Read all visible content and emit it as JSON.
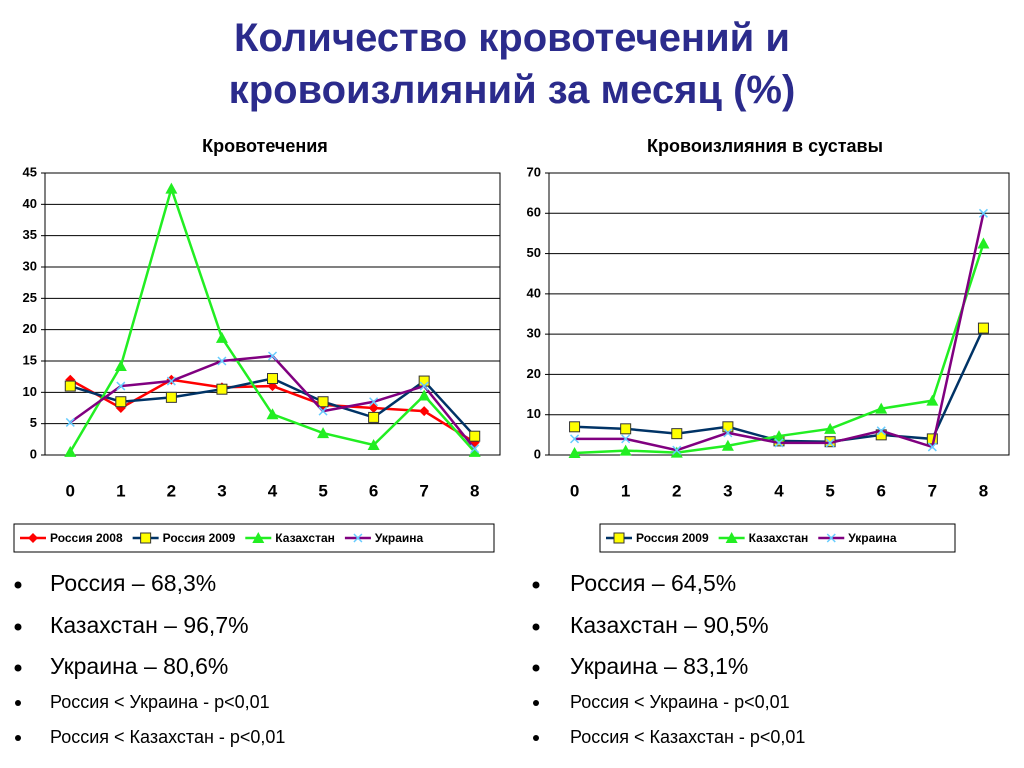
{
  "title": "Количество кровотечений и кровоизлияний за месяц (%)",
  "chart_data": [
    {
      "type": "line",
      "title": "Кровотечения",
      "categories": [
        "0",
        "1",
        "2",
        "3",
        "4",
        "5",
        "6",
        "7",
        "8"
      ],
      "ylim": [
        0,
        45
      ],
      "yticks": [
        0,
        5,
        10,
        15,
        20,
        25,
        30,
        35,
        40,
        45
      ],
      "grid": true,
      "series": [
        {
          "name": "Россия 2008",
          "color": "#ff0000",
          "marker": "diamond",
          "marker_color": "#ff0000",
          "values": [
            12,
            7.5,
            12,
            10.8,
            11,
            8,
            7.5,
            7,
            2
          ]
        },
        {
          "name": "Россия 2009",
          "color": "#003366",
          "marker": "square",
          "marker_color": "#ffff00",
          "values": [
            11,
            8.5,
            9.2,
            10.5,
            12.2,
            8.5,
            6,
            11.8,
            3
          ]
        },
        {
          "name": "Казахстан",
          "color": "#22ee22",
          "marker": "triangle",
          "marker_color": "#22ee22",
          "values": [
            0.5,
            14.2,
            42.5,
            18.7,
            6.5,
            3.5,
            1.6,
            9.5,
            0.5
          ]
        },
        {
          "name": "Украина",
          "color": "#800080",
          "marker": "x",
          "marker_color": "#66ccff",
          "values": [
            5.2,
            11,
            11.8,
            15,
            15.8,
            7,
            8.5,
            11,
            1
          ]
        }
      ]
    },
    {
      "type": "line",
      "title": "Кровоизлияния в суставы",
      "categories": [
        "0",
        "1",
        "2",
        "3",
        "4",
        "5",
        "6",
        "7",
        "8"
      ],
      "ylim": [
        0,
        70
      ],
      "yticks": [
        0,
        10,
        20,
        30,
        40,
        50,
        60,
        70
      ],
      "grid": true,
      "series": [
        {
          "name": "Россия 2009",
          "color": "#003366",
          "marker": "square",
          "marker_color": "#ffff00",
          "values": [
            7,
            6.5,
            5.3,
            7,
            3.5,
            3.3,
            5,
            4,
            31.5
          ]
        },
        {
          "name": "Казахстан",
          "color": "#22ee22",
          "marker": "triangle",
          "marker_color": "#22ee22",
          "values": [
            0.5,
            1.1,
            0.6,
            2.3,
            4.7,
            6.5,
            11.5,
            13.5,
            52.5
          ]
        },
        {
          "name": "Украина",
          "color": "#800080",
          "marker": "x",
          "marker_color": "#66ccff",
          "values": [
            4,
            4,
            1.2,
            5.5,
            3,
            3,
            6,
            2,
            60
          ]
        }
      ]
    }
  ],
  "bullets_left": [
    "Россия – 68,3%",
    "Казахстан – 96,7%",
    "Украина – 80,6%",
    "Россия < Украина - p<0,01",
    "Россия < Казахстан - p<0,01"
  ],
  "bullets_right": [
    "Россия – 64,5%",
    "Казахстан – 90,5%",
    "Украина – 83,1%",
    "Россия < Украина - p<0,01",
    "Россия < Казахстан - p<0,01"
  ]
}
